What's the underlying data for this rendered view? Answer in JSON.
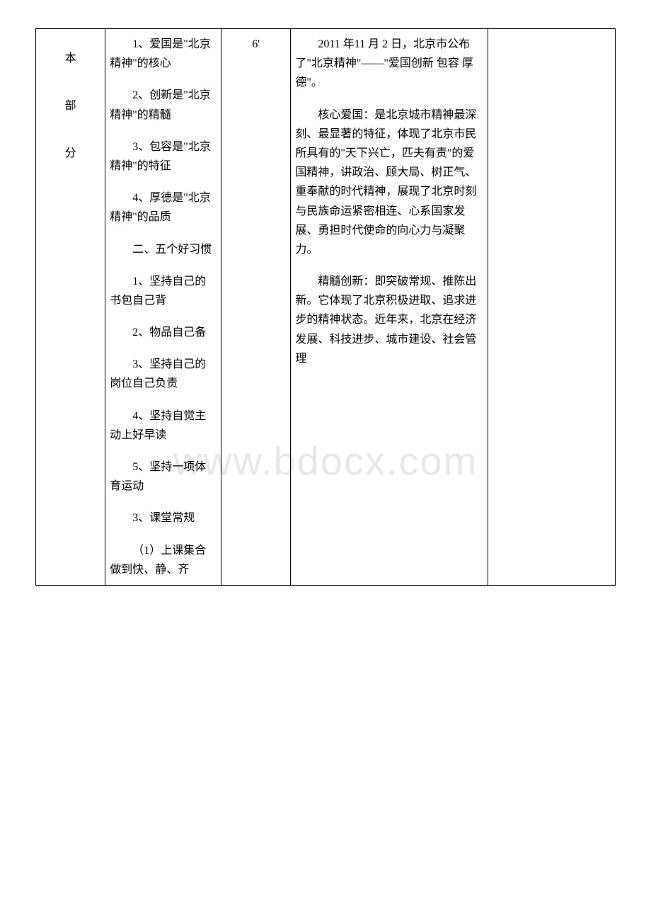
{
  "watermark": "www.bdocx.com",
  "column1": {
    "char1": "本",
    "char2": "部",
    "char3": "分"
  },
  "column2": {
    "p1": "1、爱国是\"北京精神\"的核心",
    "p2": "2、创新是\"北京精神\"的精髓",
    "p3": "3、包容是\"北京精神\"的特征",
    "p4": "4、厚德是\"北京精神\"的品质",
    "p5": "二、五个好习惯",
    "p6": "1、坚持自己的书包自己背",
    "p7": "2、物品自己备",
    "p8": "3、坚持自己的岗位自己负责",
    "p9": "4、坚持自觉主动上好早读",
    "p10": "5、坚持一项体育运动",
    "p11": "3、课堂常规",
    "p12": "（1）上课集合做到快、静、齐"
  },
  "column3": {
    "time": "6'"
  },
  "column4": {
    "p1": "2011 年11 月 2 日，北京市公布了\"北京精神\"——\"爱国创新 包容 厚德\"。",
    "p2": "核心爱国：是北京城市精神最深刻、最显著的特征，体现了北京市民所具有的\"天下兴亡，匹夫有责\"的爱国精神，讲政治、顾大局、树正气、重奉献的时代精神，展现了北京时刻与民族命运紧密相连、心系国家发展、勇担时代使命的向心力与凝聚力。",
    "p3": "精髓创新：即突破常规、推陈出新。它体现了北京积极进取、追求进步的精神状态。近年来，北京在经济发展、科技进步、城市建设、社会管理"
  },
  "styling": {
    "font_family": "SimSun",
    "body_fontsize": 16,
    "watermark_fontsize": 56,
    "watermark_color": "#e8e8e8",
    "border_color": "#000000",
    "background_color": "#ffffff",
    "line_height": 1.7,
    "text_indent_em": 2,
    "column_widths_pct": [
      12,
      20,
      12,
      34,
      22
    ]
  }
}
